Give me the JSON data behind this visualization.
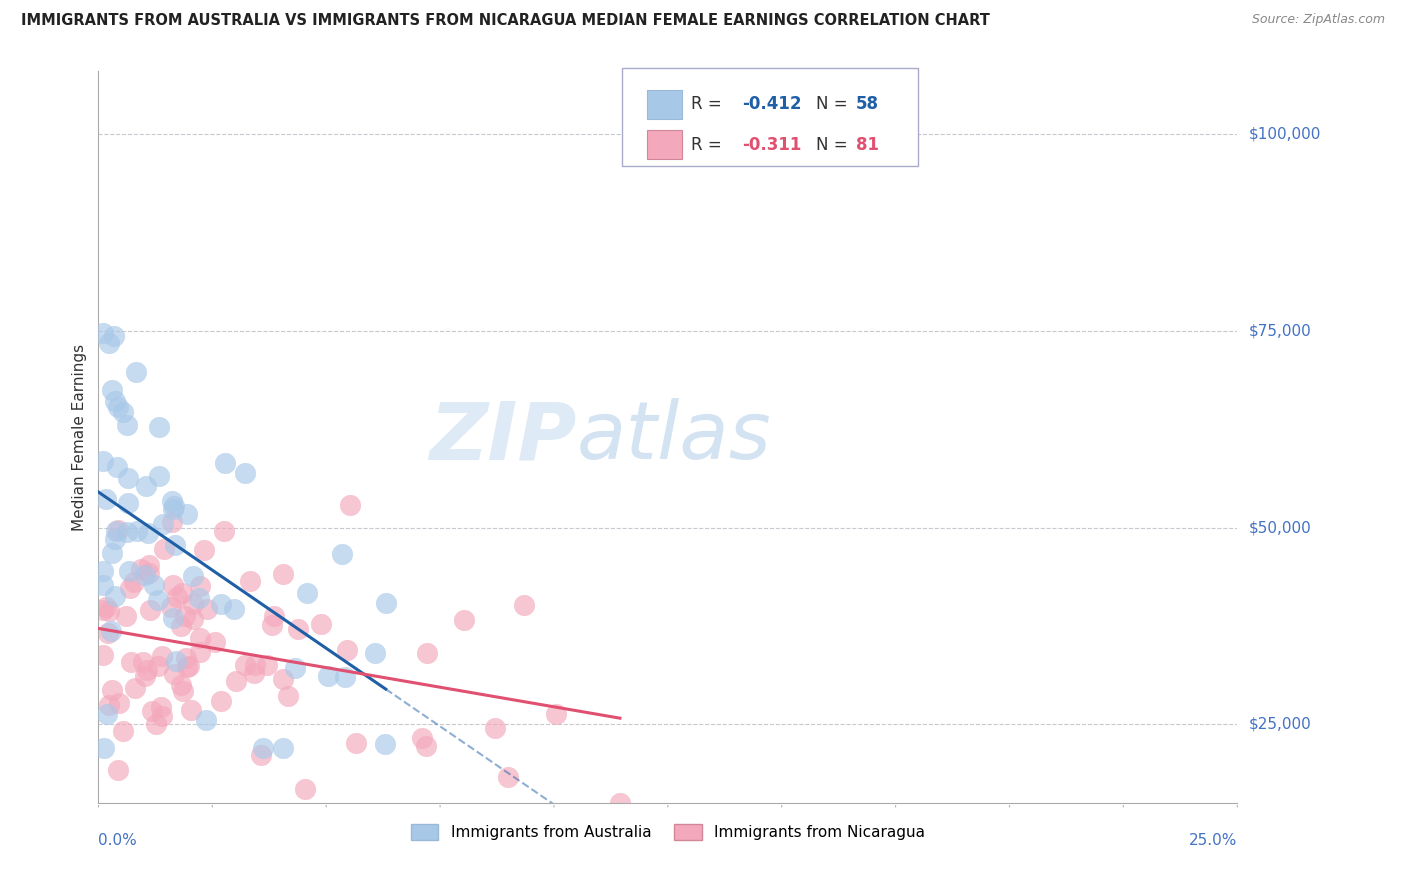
{
  "title": "IMMIGRANTS FROM AUSTRALIA VS IMMIGRANTS FROM NICARAGUA MEDIAN FEMALE EARNINGS CORRELATION CHART",
  "source": "Source: ZipAtlas.com",
  "ylabel": "Median Female Earnings",
  "yticks": [
    25000,
    50000,
    75000,
    100000
  ],
  "ytick_labels": [
    "$25,000",
    "$50,000",
    "$75,000",
    "$100,000"
  ],
  "xmin": 0.0,
  "xmax": 0.25,
  "ymin": 15000,
  "ymax": 108000,
  "color_australia": "#a8c8e8",
  "color_nicaragua": "#f4a8bc",
  "color_australia_line": "#1f5fa6",
  "color_nicaragua_line": "#e05070",
  "color_ytick": "#4472c4",
  "watermark_zip": "ZIP",
  "watermark_atlas": "atlas",
  "aus_seed": 42,
  "nic_seed": 7,
  "n_aus": 58,
  "n_nic": 81
}
